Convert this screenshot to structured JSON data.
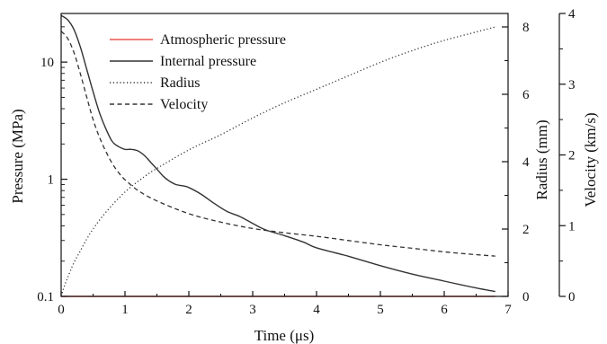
{
  "chart_data": {
    "type": "line",
    "xlabel": "Time (μs)",
    "xlim": [
      0,
      7
    ],
    "x_ticks": [
      "0",
      "1",
      "2",
      "3",
      "4",
      "5",
      "6",
      "7"
    ],
    "y_left": {
      "label": "Pressure (MPa)",
      "scale": "log",
      "lim": [
        0.1,
        26
      ],
      "ticks": [
        0.1,
        1,
        10
      ],
      "tick_labels": [
        "0.1",
        "1",
        "10"
      ]
    },
    "y_right": {
      "label": "Radius (mm)",
      "lim": [
        0,
        8.4
      ],
      "ticks": [
        "0",
        "2",
        "4",
        "6",
        "8"
      ]
    },
    "y_right2": {
      "label": "Velocity (km/s)",
      "lim": [
        0,
        4
      ],
      "ticks": [
        "0",
        "1",
        "2",
        "3",
        "4"
      ]
    },
    "legend": {
      "position": "top-left",
      "entries": [
        "Atmospheric pressure",
        "Internal pressure",
        "Radius",
        "Velocity"
      ]
    },
    "series": [
      {
        "name": "Atmospheric pressure",
        "axis": "pressure",
        "style": "solid",
        "color": "#e8554e",
        "x": [
          0,
          6.8
        ],
        "y": [
          0.1,
          0.1
        ]
      },
      {
        "name": "Internal pressure",
        "axis": "pressure",
        "style": "solid",
        "color": "#333333",
        "x": [
          0,
          0.1,
          0.2,
          0.3,
          0.4,
          0.5,
          0.6,
          0.7,
          0.8,
          0.9,
          1.0,
          1.1,
          1.2,
          1.3,
          1.4,
          1.5,
          1.6,
          1.7,
          1.8,
          1.9,
          2.0,
          2.2,
          2.4,
          2.6,
          2.8,
          3.0,
          3.2,
          3.5,
          3.8,
          4.0,
          4.5,
          5.0,
          5.5,
          6.0,
          6.5,
          6.8
        ],
        "y": [
          25,
          23,
          19,
          13.5,
          8.7,
          5.6,
          3.7,
          2.7,
          2.1,
          1.9,
          1.8,
          1.8,
          1.75,
          1.6,
          1.4,
          1.22,
          1.06,
          0.96,
          0.9,
          0.88,
          0.85,
          0.74,
          0.62,
          0.53,
          0.48,
          0.42,
          0.37,
          0.33,
          0.29,
          0.26,
          0.22,
          0.183,
          0.155,
          0.135,
          0.118,
          0.11
        ]
      },
      {
        "name": "Radius",
        "axis": "radius",
        "style": "dotted",
        "color": "#333333",
        "x": [
          0,
          0.05,
          0.1,
          0.2,
          0.3,
          0.4,
          0.5,
          0.7,
          1.0,
          1.3,
          1.5,
          2.0,
          2.5,
          3.0,
          3.5,
          4.0,
          4.5,
          5.0,
          5.5,
          6.0,
          6.5,
          6.8
        ],
        "y": [
          0,
          0.3,
          0.55,
          1.0,
          1.35,
          1.7,
          2.0,
          2.5,
          3.1,
          3.55,
          3.8,
          4.35,
          4.8,
          5.3,
          5.75,
          6.15,
          6.55,
          6.95,
          7.3,
          7.6,
          7.85,
          8.0
        ]
      },
      {
        "name": "Velocity",
        "axis": "velocity",
        "style": "dashed",
        "color": "#333333",
        "x": [
          0,
          0.1,
          0.2,
          0.3,
          0.4,
          0.5,
          0.6,
          0.7,
          0.8,
          0.9,
          1.0,
          1.2,
          1.5,
          2.0,
          2.5,
          3.0,
          3.5,
          4.0,
          4.5,
          5.0,
          5.5,
          6.0,
          6.5,
          6.8
        ],
        "y": [
          3.75,
          3.65,
          3.45,
          3.15,
          2.82,
          2.5,
          2.25,
          2.05,
          1.88,
          1.75,
          1.65,
          1.5,
          1.35,
          1.17,
          1.05,
          0.96,
          0.9,
          0.85,
          0.79,
          0.73,
          0.68,
          0.63,
          0.59,
          0.57
        ]
      }
    ]
  }
}
